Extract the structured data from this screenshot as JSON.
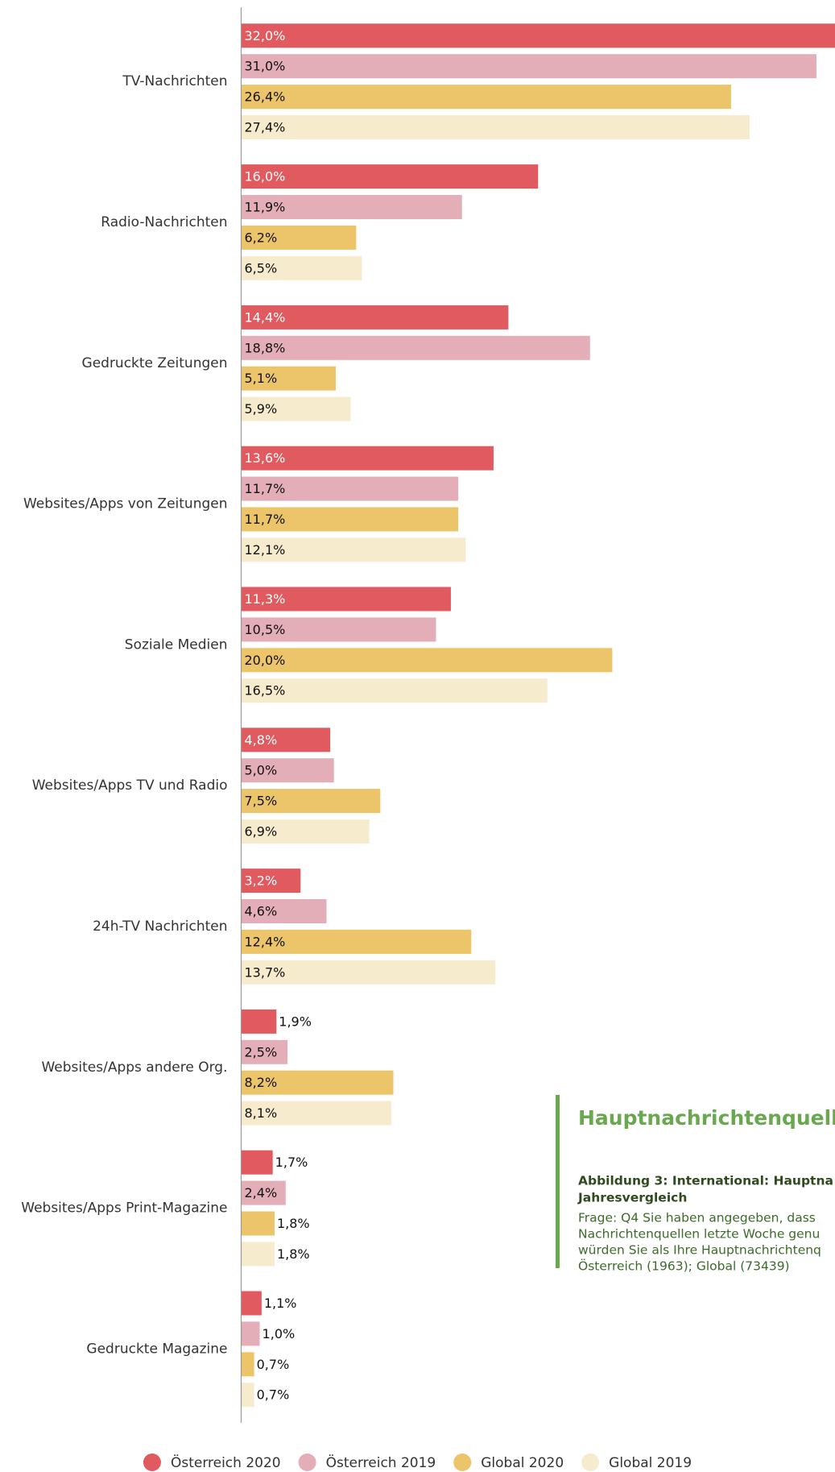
{
  "chart_data": {
    "type": "bar",
    "orientation": "horizontal",
    "categories": [
      "TV-Nachrichten",
      "Radio-Nachrichten",
      "Gedruckte Zeitungen",
      "Websites/Apps von Zeitungen",
      "Soziale Medien",
      "Websites/Apps TV und Radio",
      "24h-TV Nachrichten",
      "Websites/Apps andere Org.",
      "Websites/Apps Print-Magazine",
      "Gedruckte Magazine"
    ],
    "series": [
      {
        "name": "Österreich 2020",
        "color": "#e05a60",
        "label_color": "#ffffff",
        "values": [
          32.0,
          16.0,
          14.4,
          13.6,
          11.3,
          4.8,
          3.2,
          1.9,
          1.7,
          1.1
        ],
        "value_labels": [
          "32,0%",
          "16,0%",
          "14,4%",
          "13,6%",
          "11,3%",
          "4,8%",
          "3,2%",
          "1,9%",
          "1,7%",
          "1,1%"
        ]
      },
      {
        "name": "Österreich 2019",
        "color": "#e4aeb9",
        "label_color": "#111111",
        "values": [
          31.0,
          11.9,
          18.8,
          11.7,
          10.5,
          5.0,
          4.6,
          2.5,
          2.4,
          1.0
        ],
        "value_labels": [
          "31,0%",
          "11,9%",
          "18,8%",
          "11,7%",
          "10,5%",
          "5,0%",
          "4,6%",
          "2,5%",
          "2,4%",
          "1,0%"
        ]
      },
      {
        "name": "Global 2020",
        "color": "#ecc46a",
        "label_color": "#111111",
        "values": [
          26.4,
          6.2,
          5.1,
          11.7,
          20.0,
          7.5,
          12.4,
          8.2,
          1.8,
          0.7
        ],
        "value_labels": [
          "26,4%",
          "6,2%",
          "5,1%",
          "11,7%",
          "20,0%",
          "7,5%",
          "12,4%",
          "8,2%",
          "1,8%",
          "0,7%"
        ]
      },
      {
        "name": "Global 2019",
        "color": "#f7ebce",
        "label_color": "#111111",
        "values": [
          27.4,
          6.5,
          5.9,
          12.1,
          16.5,
          6.9,
          13.7,
          8.1,
          1.8,
          0.7
        ],
        "value_labels": [
          "27,4%",
          "6,5%",
          "5,9%",
          "12,1%",
          "16,5%",
          "6,9%",
          "13,7%",
          "8,1%",
          "1,8%",
          "0,7%"
        ]
      }
    ],
    "legend": "bottom",
    "annotations": {
      "title": "Hauptnachrichtenquell",
      "subtitle": [
        "Abbildung 3: International: Hauptna",
        "Jahresvergleich"
      ],
      "text": [
        "Frage: Q4 Sie haben angegeben, dass",
        "Nachrichtenquellen letzte Woche genu",
        "würden Sie als Ihre Hauptnachrichtenq",
        "Österreich (1963); Global (73439)"
      ]
    }
  }
}
